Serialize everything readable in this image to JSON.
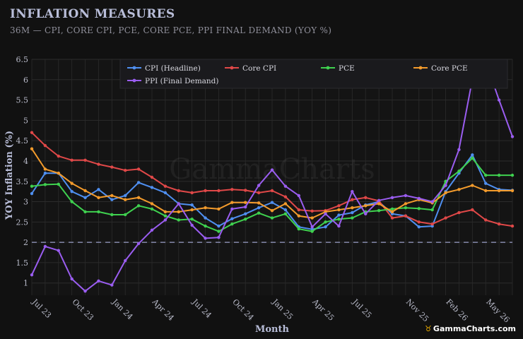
{
  "header": {
    "title": "INFLATION MEASURES",
    "subtitle": "36M — CPI, CORE CPI, PCE, CORE PCE, PPI FINAL DEMAND (YOY %)"
  },
  "watermark": "GammaCharts",
  "brand": {
    "icon": "bull-logo-icon",
    "text": "GammaCharts.com"
  },
  "colors": {
    "background": "#111111",
    "plot_background": "#141414",
    "grid": "#2b2b2b",
    "axis_text": "#b9bbca",
    "axis_label": "#b8bdd8",
    "reference_line": "#9aa0c8"
  },
  "chart_data": {
    "type": "line",
    "xlabel": "Month",
    "ylabel": "YOY Inflation (%)",
    "ylim": [
      0.7,
      6.5
    ],
    "yticks": [
      1,
      1.5,
      2,
      2.5,
      3,
      3.5,
      4,
      4.5,
      5,
      5.5,
      6,
      6.5
    ],
    "grid": true,
    "legend_position": "top",
    "reference_line": {
      "y": 2.0,
      "style": "dashed"
    },
    "x": [
      "Jul 23",
      "Aug 23",
      "Sep 23",
      "Oct 23",
      "Nov 23",
      "Dec 23",
      "Jan 24",
      "Feb 24",
      "Mar 24",
      "Apr 24",
      "May 24",
      "Jun 24",
      "Jul 24",
      "Aug 24",
      "Sep 24",
      "Oct 24",
      "Nov 24",
      "Dec 24",
      "Jan 25",
      "Feb 25",
      "Mar 25",
      "Apr 25",
      "May 25",
      "Jun 25",
      "Jul 25",
      "Aug 25",
      "Sep 25",
      "Oct 25",
      "Nov 25",
      "Dec 25",
      "Jan 26",
      "Feb 26",
      "Mar 26",
      "Apr 26",
      "May 26",
      "Jun 26",
      "Jul 26"
    ],
    "x_tick_labels": [
      "Jul 23",
      "Oct 23",
      "Jan 24",
      "Apr 24",
      "Jul 24",
      "Oct 24",
      "Jan 25",
      "Apr 25",
      "Jul 25",
      "Nov 25",
      "Feb 26",
      "May 26"
    ],
    "x_tick_indices": [
      0,
      3,
      6,
      9,
      12,
      15,
      18,
      21,
      24,
      28,
      31,
      34
    ],
    "series": [
      {
        "name": "CPI (Headline)",
        "color": "#4f8ff0",
        "values": [
          3.2,
          3.7,
          3.7,
          3.25,
          3.1,
          3.3,
          3.05,
          3.15,
          3.47,
          3.35,
          3.22,
          2.95,
          2.92,
          2.6,
          2.4,
          2.58,
          2.7,
          2.85,
          2.98,
          2.8,
          2.38,
          2.32,
          2.38,
          2.67,
          2.73,
          2.92,
          3.0,
          2.7,
          2.65,
          2.38,
          2.4,
          3.25,
          3.7,
          4.15,
          3.45,
          3.3,
          3.28
        ]
      },
      {
        "name": "Core CPI",
        "color": "#e04848",
        "values": [
          4.7,
          4.38,
          4.12,
          4.02,
          4.02,
          3.92,
          3.85,
          3.77,
          3.8,
          3.6,
          3.38,
          3.27,
          3.22,
          3.27,
          3.27,
          3.3,
          3.28,
          3.22,
          3.27,
          3.12,
          2.8,
          2.77,
          2.78,
          2.9,
          3.05,
          3.1,
          3.02,
          2.6,
          2.65,
          2.5,
          2.45,
          2.6,
          2.73,
          2.8,
          2.55,
          2.45,
          2.4
        ]
      },
      {
        "name": "PCE",
        "color": "#3fd14f",
        "values": [
          3.38,
          3.42,
          3.43,
          3.0,
          2.75,
          2.75,
          2.68,
          2.68,
          2.9,
          2.82,
          2.65,
          2.55,
          2.57,
          2.4,
          2.27,
          2.45,
          2.57,
          2.72,
          2.6,
          2.7,
          2.33,
          2.27,
          2.5,
          2.57,
          2.6,
          2.75,
          2.78,
          2.82,
          2.85,
          2.83,
          2.8,
          3.5,
          3.75,
          4.07,
          3.65,
          3.65,
          3.65
        ]
      },
      {
        "name": "Core PCE",
        "color": "#f39b2c",
        "values": [
          4.3,
          3.8,
          3.7,
          3.45,
          3.27,
          3.1,
          3.15,
          3.05,
          3.1,
          2.95,
          2.75,
          2.75,
          2.8,
          2.85,
          2.82,
          2.98,
          2.98,
          2.97,
          2.78,
          2.95,
          2.65,
          2.6,
          2.75,
          2.8,
          2.85,
          2.9,
          2.95,
          2.75,
          2.95,
          3.05,
          2.97,
          3.22,
          3.3,
          3.4,
          3.27,
          3.27,
          3.27
        ]
      },
      {
        "name": "PPI (Final Demand)",
        "color": "#9a5df0",
        "values": [
          1.2,
          1.9,
          1.8,
          1.1,
          0.8,
          1.05,
          0.95,
          1.55,
          1.97,
          2.3,
          2.55,
          2.95,
          2.42,
          2.1,
          2.12,
          2.82,
          2.87,
          3.4,
          3.78,
          3.38,
          3.15,
          2.38,
          2.7,
          2.4,
          3.25,
          2.7,
          3.03,
          3.1,
          3.15,
          3.08,
          3.0,
          3.4,
          4.28,
          6.0,
          6.45,
          5.5,
          4.6
        ]
      }
    ]
  }
}
